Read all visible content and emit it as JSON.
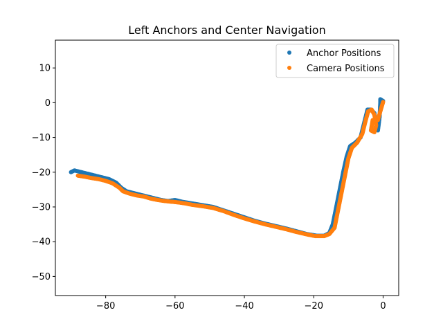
{
  "chart_data": {
    "type": "scatter",
    "title": "Left Anchors and Center Navigation",
    "xlabel": "",
    "ylabel": "",
    "xlim": [
      -94.5,
      4.5
    ],
    "ylim": [
      -55.5,
      18.0
    ],
    "xticks": [
      -80,
      -60,
      -40,
      -20,
      0
    ],
    "xtick_labels": [
      "−80",
      "−60",
      "−40",
      "−20",
      "0"
    ],
    "yticks": [
      10,
      0,
      -10,
      -20,
      -30,
      -40,
      -50
    ],
    "ytick_labels": [
      "10",
      "0",
      "−10",
      "−20",
      "−30",
      "−40",
      "−50"
    ],
    "grid": false,
    "legend_position": "top-right",
    "series": [
      {
        "name": "Anchor Positions",
        "color": "#1f77b4",
        "points": [
          [
            -90.0,
            -20.0
          ],
          [
            -89.0,
            -19.5
          ],
          [
            -87.0,
            -20.0
          ],
          [
            -85.0,
            -20.5
          ],
          [
            -83.0,
            -21.0
          ],
          [
            -81.0,
            -21.5
          ],
          [
            -79.0,
            -22.0
          ],
          [
            -77.0,
            -23.0
          ],
          [
            -75.5,
            -24.5
          ],
          [
            -74.0,
            -25.5
          ],
          [
            -72.0,
            -26.0
          ],
          [
            -70.0,
            -26.5
          ],
          [
            -68.0,
            -27.0
          ],
          [
            -66.0,
            -27.5
          ],
          [
            -64.0,
            -28.0
          ],
          [
            -62.0,
            -28.3
          ],
          [
            -60.0,
            -28.0
          ],
          [
            -58.0,
            -28.5
          ],
          [
            -55.0,
            -29.0
          ],
          [
            -52.0,
            -29.5
          ],
          [
            -49.0,
            -30.0
          ],
          [
            -46.0,
            -31.0
          ],
          [
            -43.0,
            -32.0
          ],
          [
            -40.0,
            -33.0
          ],
          [
            -37.0,
            -34.0
          ],
          [
            -34.0,
            -34.8
          ],
          [
            -31.0,
            -35.5
          ],
          [
            -28.0,
            -36.2
          ],
          [
            -25.0,
            -37.0
          ],
          [
            -22.0,
            -37.8
          ],
          [
            -19.0,
            -38.3
          ],
          [
            -17.0,
            -38.3
          ],
          [
            -15.5,
            -37.5
          ],
          [
            -14.5,
            -35.0
          ],
          [
            -13.5,
            -30.0
          ],
          [
            -12.5,
            -25.0
          ],
          [
            -11.5,
            -20.0
          ],
          [
            -10.5,
            -15.5
          ],
          [
            -9.5,
            -12.5
          ],
          [
            -8.0,
            -11.5
          ],
          [
            -6.5,
            -10.0
          ],
          [
            -5.5,
            -6.0
          ],
          [
            -4.5,
            -2.0
          ],
          [
            -3.5,
            -2.0
          ],
          [
            -2.5,
            -3.0
          ],
          [
            -2.0,
            -6.0
          ],
          [
            -1.5,
            -8.0
          ],
          [
            -1.0,
            -4.0
          ],
          [
            -0.8,
            0.0
          ],
          [
            -0.8,
            1.0
          ],
          [
            0.0,
            0.5
          ]
        ]
      },
      {
        "name": "Camera Positions",
        "color": "#ff7f0e",
        "points": [
          [
            -88.0,
            -21.0
          ],
          [
            -86.0,
            -21.3
          ],
          [
            -84.0,
            -21.7
          ],
          [
            -82.0,
            -22.0
          ],
          [
            -80.0,
            -22.5
          ],
          [
            -78.0,
            -23.2
          ],
          [
            -76.0,
            -24.5
          ],
          [
            -75.0,
            -25.5
          ],
          [
            -73.0,
            -26.2
          ],
          [
            -71.0,
            -26.7
          ],
          [
            -69.0,
            -27.0
          ],
          [
            -67.0,
            -27.6
          ],
          [
            -65.0,
            -28.0
          ],
          [
            -63.0,
            -28.3
          ],
          [
            -61.0,
            -28.5
          ],
          [
            -59.0,
            -28.7
          ],
          [
            -57.0,
            -29.0
          ],
          [
            -55.0,
            -29.4
          ],
          [
            -52.0,
            -29.8
          ],
          [
            -49.0,
            -30.3
          ],
          [
            -46.0,
            -31.2
          ],
          [
            -43.0,
            -32.3
          ],
          [
            -40.0,
            -33.3
          ],
          [
            -37.0,
            -34.2
          ],
          [
            -34.0,
            -35.0
          ],
          [
            -31.0,
            -35.7
          ],
          [
            -28.0,
            -36.4
          ],
          [
            -25.0,
            -37.2
          ],
          [
            -22.0,
            -37.9
          ],
          [
            -19.5,
            -38.4
          ],
          [
            -17.0,
            -38.4
          ],
          [
            -15.5,
            -37.8
          ],
          [
            -14.0,
            -36.0
          ],
          [
            -13.0,
            -31.0
          ],
          [
            -12.0,
            -26.0
          ],
          [
            -11.0,
            -21.0
          ],
          [
            -10.0,
            -16.0
          ],
          [
            -9.0,
            -13.0
          ],
          [
            -7.5,
            -11.5
          ],
          [
            -6.0,
            -9.0
          ],
          [
            -5.0,
            -5.0
          ],
          [
            -4.3,
            -2.5
          ],
          [
            -3.3,
            -2.0
          ],
          [
            -2.5,
            -3.5
          ],
          [
            -2.0,
            -6.5
          ],
          [
            -2.5,
            -8.5
          ],
          [
            -3.5,
            -8.0
          ],
          [
            -3.0,
            -5.0
          ],
          [
            -1.5,
            -5.0
          ],
          [
            -0.8,
            -2.5
          ],
          [
            0.0,
            0.2
          ]
        ]
      }
    ]
  }
}
